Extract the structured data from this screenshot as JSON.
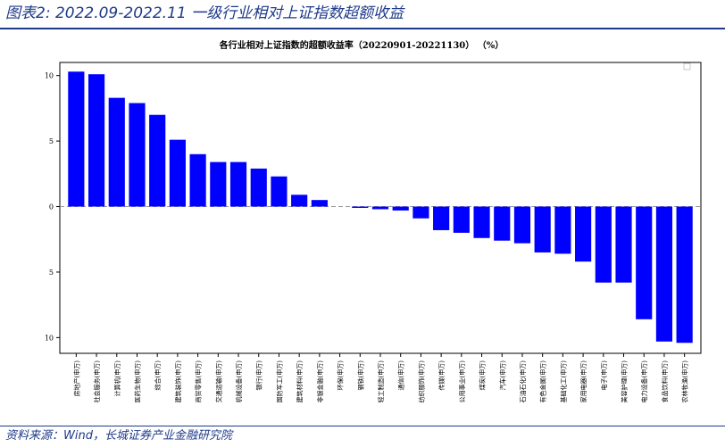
{
  "header": {
    "title": "图表2:  2022.09-2022.11 一级行业相对上证指数超额收益"
  },
  "footer": {
    "source": "资料来源：Wind，长城证券产业金融研究院"
  },
  "colors": {
    "bar": "#0000ff",
    "axis": "#000000",
    "zero_line": "#9a9a9a",
    "brand_blue": "#1f3a8a"
  },
  "chart_data": {
    "type": "bar",
    "title": "各行业相对上证指数的超额收益率（20220901-20221130）  （%）",
    "xlabel": "",
    "ylabel": "",
    "ylim": [
      -11.2,
      11
    ],
    "yticks": [
      10,
      5,
      0,
      -5,
      -10
    ],
    "ytick_labels": [
      "10",
      "5",
      "0",
      "5",
      "10"
    ],
    "grid": false,
    "zero_line": "dashed",
    "categories": [
      "房地产(申万)",
      "社会服务(申万)",
      "计算机(申万)",
      "医药生物(申万)",
      "综合(申万)",
      "建筑装饰(申万)",
      "商贸零售(申万)",
      "交通运输(申万)",
      "机械设备(申万)",
      "银行(申万)",
      "国防军工(申万)",
      "建筑材料(申万)",
      "非银金融(申万)",
      "环保(申万)",
      "钢铁(申万)",
      "轻工制造(申万)",
      "通信(申万)",
      "纺织服饰(申万)",
      "传媒(申万)",
      "公用事业(申万)",
      "煤炭(申万)",
      "汽车(申万)",
      "石油石化(申万)",
      "有色金属(申万)",
      "基础化工(申万)",
      "家用电器(申万)",
      "电子(申万)",
      "美容护理(申万)",
      "电力设备(申万)",
      "食品饮料(申万)",
      "农林牧渔(申万)"
    ],
    "values": [
      10.3,
      10.1,
      8.3,
      7.9,
      7.0,
      5.1,
      4.0,
      3.4,
      3.4,
      2.9,
      2.3,
      0.9,
      0.5,
      0.0,
      -0.1,
      -0.2,
      -0.3,
      -0.9,
      -1.8,
      -2.0,
      -2.4,
      -2.6,
      -2.8,
      -3.5,
      -3.6,
      -4.2,
      -5.8,
      -5.8,
      -8.6,
      -10.3,
      -10.4
    ]
  }
}
